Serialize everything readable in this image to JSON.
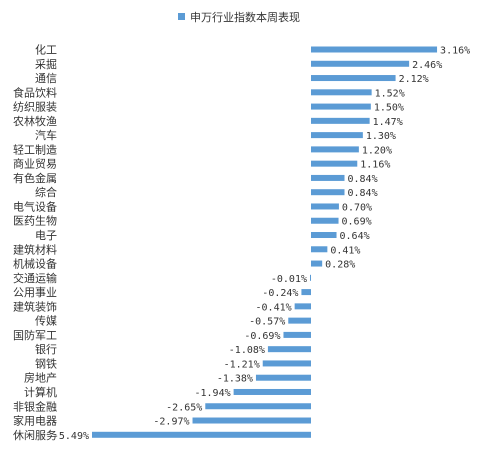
{
  "chart_data": {
    "type": "bar",
    "orientation": "horizontal",
    "legend": {
      "label": "申万行业指数本周表现",
      "placement": "top-center"
    },
    "series": [
      {
        "name": "申万行业指数本周表现",
        "color": "#5B9BD5",
        "values": [
          3.16,
          2.46,
          2.12,
          1.52,
          1.5,
          1.47,
          1.3,
          1.2,
          1.16,
          0.84,
          0.84,
          0.7,
          0.69,
          0.64,
          0.41,
          0.28,
          -0.01,
          -0.24,
          -0.41,
          -0.57,
          -0.69,
          -1.08,
          -1.21,
          -1.38,
          -1.94,
          -2.65,
          -2.97,
          -5.49
        ],
        "labels": [
          "3.16%",
          "2.46%",
          "2.12%",
          "1.52%",
          "1.50%",
          "1.47%",
          "1.30%",
          "1.20%",
          "1.16%",
          "0.84%",
          "0.84%",
          "0.70%",
          "0.69%",
          "0.64%",
          "0.41%",
          "0.28%",
          "-0.01%",
          "-0.24%",
          "-0.41%",
          "-0.57%",
          "-0.69%",
          "-1.08%",
          "-1.21%",
          "-1.38%",
          "-1.94%",
          "-2.65%",
          "-2.97%",
          "-5.49%"
        ]
      }
    ],
    "categories": [
      "化工",
      "采掘",
      "通信",
      "食品饮料",
      "纺织服装",
      "农林牧渔",
      "汽车",
      "轻工制造",
      "商业贸易",
      "有色金属",
      "综合",
      "电气设备",
      "医药生物",
      "电子",
      "建筑材料",
      "机械设备",
      "交通运输",
      "公用事业",
      "建筑装饰",
      "传媒",
      "国防军工",
      "银行",
      "钢铁",
      "房地产",
      "计算机",
      "非银金融",
      "家用电器",
      "休闲服务"
    ],
    "unit": "%",
    "xlim": [
      -5.49,
      3.16
    ],
    "grid": false
  }
}
